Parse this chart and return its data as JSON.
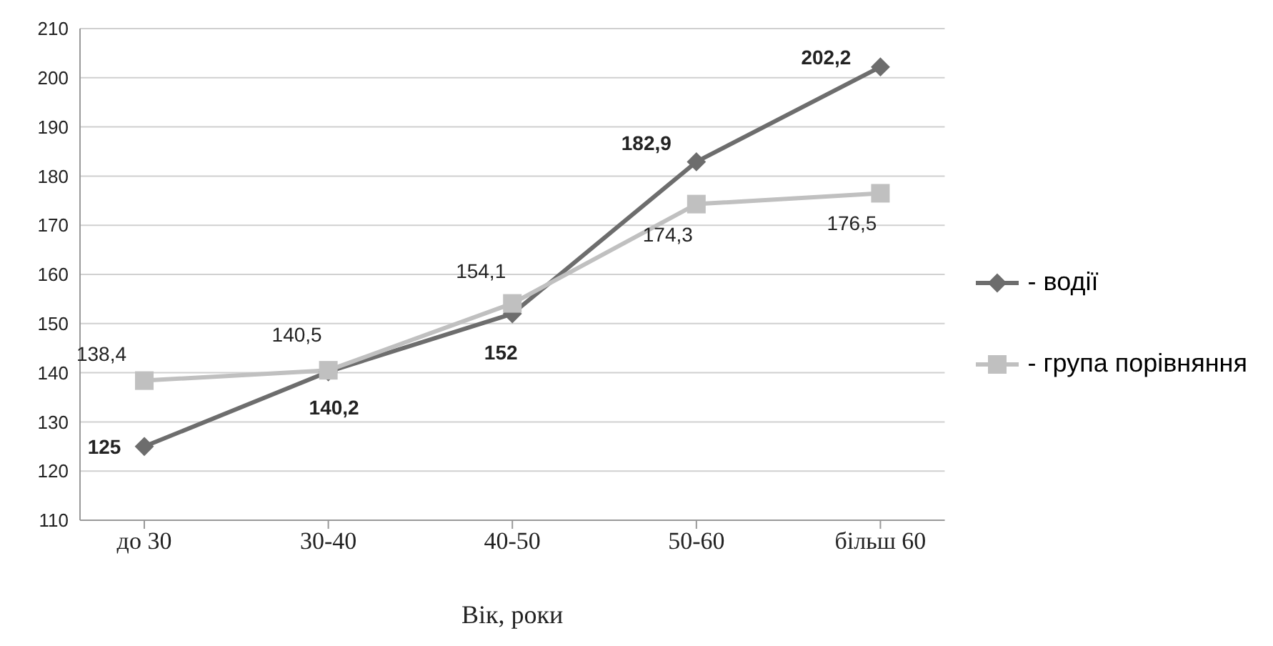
{
  "chart_data": {
    "type": "line",
    "xlabel": "Вік, роки",
    "categories": [
      "до 30",
      "30-40",
      "40-50",
      "50-60",
      "більш 60"
    ],
    "series": [
      {
        "name": "- водії",
        "color": "#6d6d6d",
        "marker": "diamond",
        "values": [
          125,
          140.2,
          152,
          182.9,
          202.2
        ],
        "value_labels": [
          "125",
          "140,2",
          "152",
          "182,9",
          "202,2"
        ]
      },
      {
        "name": "- група порівняння",
        "color": "#c0c0c0",
        "marker": "square",
        "values": [
          138.4,
          140.5,
          154.1,
          174.3,
          176.5
        ],
        "value_labels": [
          "138,4",
          "140,5",
          "154,1",
          "174,3",
          "176,5"
        ]
      }
    ],
    "ylim": [
      110,
      210
    ],
    "yticks": [
      110,
      120,
      130,
      140,
      150,
      160,
      170,
      180,
      190,
      200,
      210
    ],
    "grid": "y",
    "legend": "right"
  }
}
